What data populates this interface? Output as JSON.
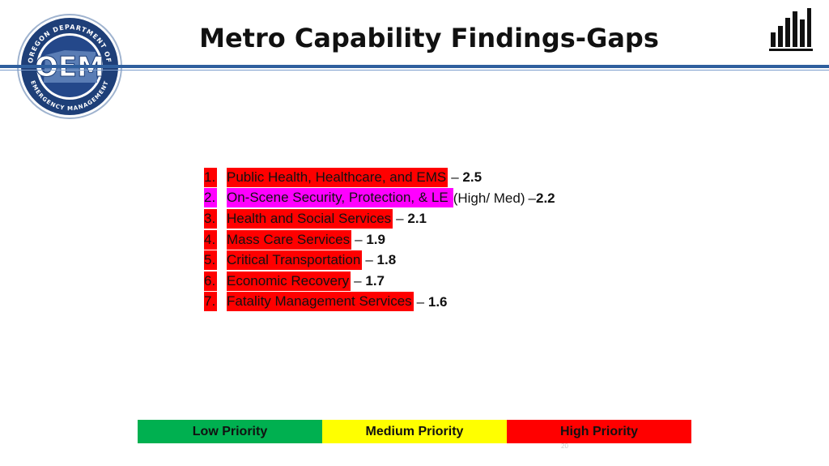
{
  "header": {
    "title": "Metro Capability Findings-Gaps",
    "logo": {
      "text": "OEM",
      "ring_top": "OREGON DEPARTMENT OF",
      "ring_bottom": "EMERGENCY MANAGEMENT"
    },
    "icon": "bar-chart-icon"
  },
  "findings": [
    {
      "num": "1.",
      "name": "Public Health, Healthcare, and EMS",
      "qualifier": "",
      "score_prefix": "–",
      "score": "2.5",
      "priority": "high"
    },
    {
      "num": "2.",
      "name": "On-Scene Security, Protection, & LE",
      "qualifier": "(High/ Med)",
      "score_prefix": "–",
      "score": "2.2",
      "priority": "high-med"
    },
    {
      "num": "3.",
      "name": "Health and Social Services",
      "qualifier": "",
      "score_prefix": "–",
      "score": "2.1",
      "priority": "high"
    },
    {
      "num": "4.",
      "name": "Mass Care Services",
      "qualifier": "",
      "score_prefix": "–",
      "score": "1.9",
      "priority": "high"
    },
    {
      "num": "5.",
      "name": "Critical Transportation",
      "qualifier": "",
      "score_prefix": "–",
      "score": "1.8",
      "priority": "high"
    },
    {
      "num": "6.",
      "name": "Economic Recovery",
      "qualifier": "",
      "score_prefix": "–",
      "score": "1.7",
      "priority": "high"
    },
    {
      "num": "7.",
      "name": "Fatality Management Services",
      "qualifier": "",
      "score_prefix": "–",
      "score": "1.6",
      "priority": "high"
    }
  ],
  "legend": [
    {
      "label": "Low Priority",
      "color": "#00b050"
    },
    {
      "label": "Medium Priority",
      "color": "#ffff00"
    },
    {
      "label": "High Priority",
      "color": "#ff0000"
    }
  ],
  "highlight_colors": {
    "high": "#ff0000",
    "high-med": "#ff00ff"
  },
  "page_number": "20"
}
